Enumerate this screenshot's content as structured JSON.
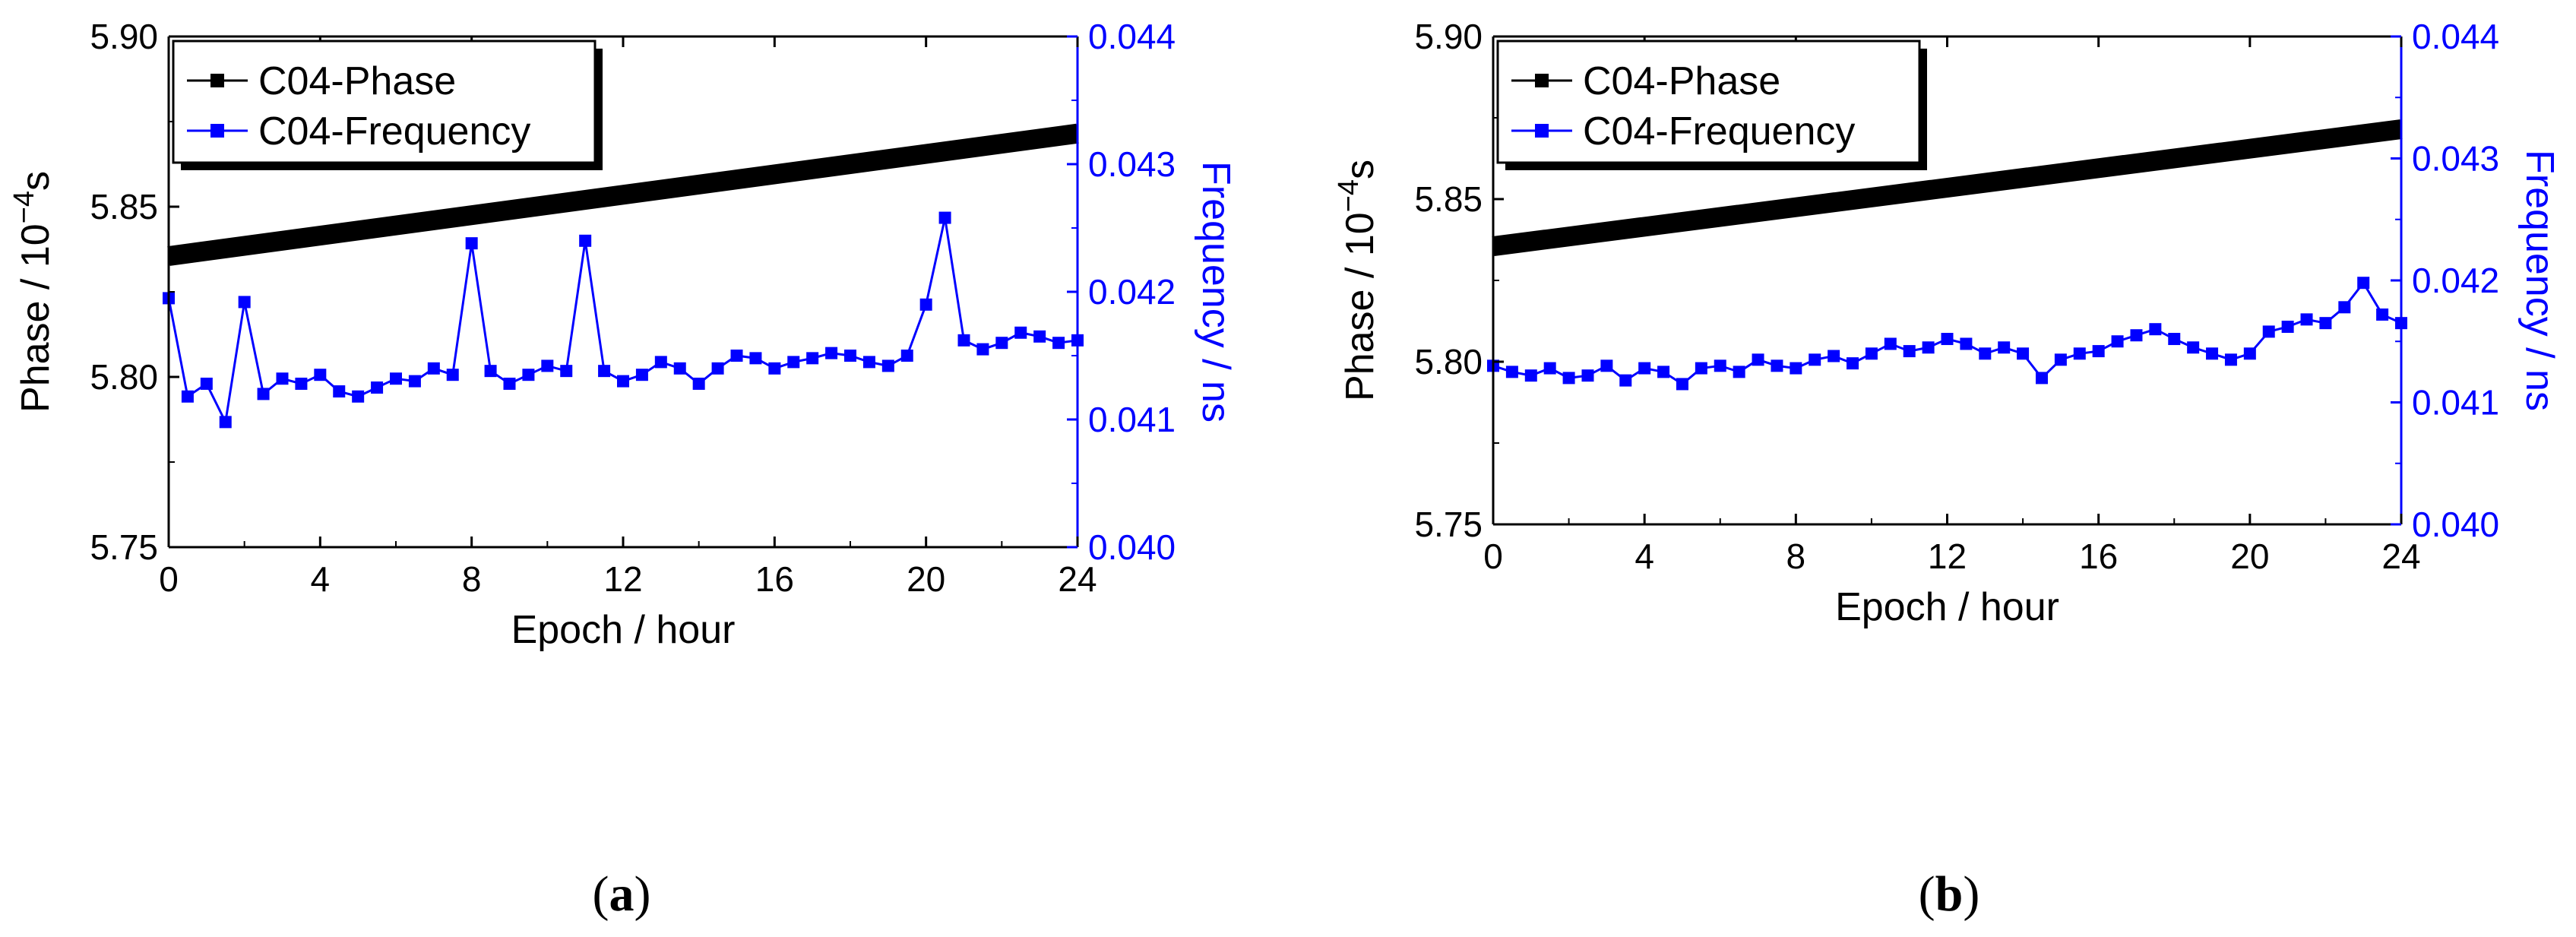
{
  "chart_data": [
    {
      "type": "line",
      "panel_label": "a",
      "xlabel": "Epoch / hour",
      "ylabel_left_prefix": "Phase / 10",
      "ylabel_left_exponent": "−4",
      "ylabel_left_suffix": "s",
      "ylabel_right": "Frequency / ns",
      "xlim": [
        0,
        24
      ],
      "ylim_left": [
        5.75,
        5.9
      ],
      "ylim_right": [
        0.04,
        0.044
      ],
      "x_ticks": [
        "0",
        "4",
        "8",
        "12",
        "16",
        "20",
        "24"
      ],
      "y_ticks_left": [
        "5.75",
        "5.80",
        "5.85",
        "5.90"
      ],
      "y_ticks_right": [
        "0.040",
        "0.041",
        "0.042",
        "0.043",
        "0.044"
      ],
      "colors": {
        "phase": "#000000",
        "frequency": "#0000ff"
      },
      "legend": {
        "position": "top-left",
        "entries": [
          "C04-Phase",
          "C04-Frequency"
        ]
      },
      "series": [
        {
          "name": "C04-Phase",
          "axis": "left",
          "style": "thick-line",
          "x": [
            0,
            24
          ],
          "y": [
            5.8355,
            5.8715
          ]
        },
        {
          "name": "C04-Frequency",
          "axis": "right",
          "style": "line-square",
          "x": [
            0,
            0.5,
            1,
            1.5,
            2,
            2.5,
            3,
            3.5,
            4,
            4.5,
            5,
            5.5,
            6,
            6.5,
            7,
            7.5,
            8,
            8.5,
            9,
            9.5,
            10,
            10.5,
            11,
            11.5,
            12,
            12.5,
            13,
            13.5,
            14,
            14.5,
            15,
            15.5,
            16,
            16.5,
            17,
            17.5,
            18,
            18.5,
            19,
            19.5,
            20,
            20.5,
            21,
            21.5,
            22,
            22.5,
            23,
            23.5,
            24
          ],
          "y": [
            0.04195,
            0.04118,
            0.04128,
            0.04098,
            0.04192,
            0.0412,
            0.04132,
            0.04128,
            0.04135,
            0.04122,
            0.04118,
            0.04125,
            0.04132,
            0.0413,
            0.0414,
            0.04135,
            0.04238,
            0.04138,
            0.04128,
            0.04135,
            0.04142,
            0.04138,
            0.0424,
            0.04138,
            0.0413,
            0.04135,
            0.04145,
            0.0414,
            0.04128,
            0.0414,
            0.0415,
            0.04148,
            0.0414,
            0.04145,
            0.04148,
            0.04152,
            0.0415,
            0.04145,
            0.04142,
            0.0415,
            0.0419,
            0.04258,
            0.04162,
            0.04155,
            0.0416,
            0.04168,
            0.04165,
            0.0416,
            0.04162
          ]
        }
      ]
    },
    {
      "type": "line",
      "panel_label": "b",
      "xlabel": "Epoch / hour",
      "ylabel_left_prefix": "Phase / 10",
      "ylabel_left_exponent": "−4",
      "ylabel_left_suffix": "s",
      "ylabel_right": "Frequency / ns",
      "xlim": [
        0,
        24
      ],
      "ylim_left": [
        5.75,
        5.9
      ],
      "ylim_right": [
        0.04,
        0.044
      ],
      "x_ticks": [
        "0",
        "4",
        "8",
        "12",
        "16",
        "20",
        "24"
      ],
      "y_ticks_left": [
        "5.75",
        "5.80",
        "5.85",
        "5.90"
      ],
      "y_ticks_right": [
        "0.040",
        "0.041",
        "0.042",
        "0.043",
        "0.044"
      ],
      "colors": {
        "phase": "#000000",
        "frequency": "#0000ff"
      },
      "legend": {
        "position": "top-left",
        "entries": [
          "C04-Phase",
          "C04-Frequency"
        ]
      },
      "series": [
        {
          "name": "C04-Phase",
          "axis": "left",
          "style": "thick-line",
          "x": [
            0,
            24
          ],
          "y": [
            5.8355,
            5.8715
          ]
        },
        {
          "name": "C04-Frequency",
          "axis": "right",
          "style": "line-square",
          "x": [
            0,
            0.5,
            1,
            1.5,
            2,
            2.5,
            3,
            3.5,
            4,
            4.5,
            5,
            5.5,
            6,
            6.5,
            7,
            7.5,
            8,
            8.5,
            9,
            9.5,
            10,
            10.5,
            11,
            11.5,
            12,
            12.5,
            13,
            13.5,
            14,
            14.5,
            15,
            15.5,
            16,
            16.5,
            17,
            17.5,
            18,
            18.5,
            19,
            19.5,
            20,
            20.5,
            21,
            21.5,
            22,
            22.5,
            23,
            23.5,
            24
          ],
          "y": [
            0.0413,
            0.04125,
            0.04122,
            0.04128,
            0.0412,
            0.04122,
            0.0413,
            0.04118,
            0.04128,
            0.04125,
            0.04115,
            0.04128,
            0.0413,
            0.04125,
            0.04135,
            0.0413,
            0.04128,
            0.04135,
            0.04138,
            0.04132,
            0.0414,
            0.04148,
            0.04142,
            0.04145,
            0.04152,
            0.04148,
            0.0414,
            0.04145,
            0.0414,
            0.0412,
            0.04135,
            0.0414,
            0.04142,
            0.0415,
            0.04155,
            0.0416,
            0.04152,
            0.04145,
            0.0414,
            0.04135,
            0.0414,
            0.04158,
            0.04162,
            0.04168,
            0.04165,
            0.04178,
            0.04198,
            0.04172,
            0.04165
          ]
        }
      ]
    }
  ]
}
